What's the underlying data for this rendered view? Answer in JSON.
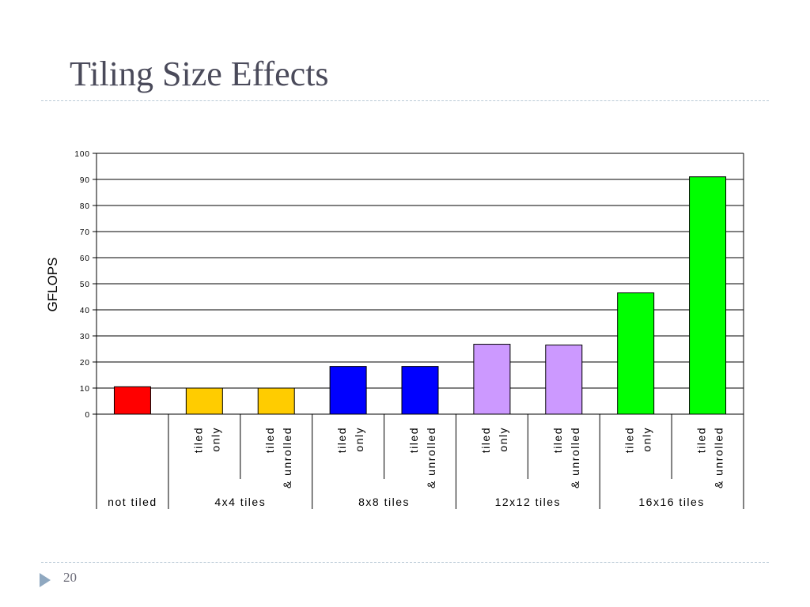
{
  "slide": {
    "title": "Tiling Size Effects",
    "page_number": "20"
  },
  "chart_data": {
    "type": "bar",
    "title": "",
    "xlabel": "",
    "ylabel": "GFLOPS",
    "ylim": [
      0,
      100
    ],
    "yticks": [
      0,
      10,
      20,
      30,
      40,
      50,
      60,
      70,
      80,
      90,
      100
    ],
    "grid": true,
    "bars": [
      {
        "group": "not tiled",
        "label": "",
        "value": 10.5,
        "color": "#ff0000"
      },
      {
        "group": "4x4 tiles",
        "label": "tiled only",
        "value": 10,
        "color": "#ffcc00"
      },
      {
        "group": "4x4 tiles",
        "label": "tiled & unrolled",
        "value": 10,
        "color": "#ffcc00"
      },
      {
        "group": "8x8 tiles",
        "label": "tiled only",
        "value": 18.3,
        "color": "#0000ff"
      },
      {
        "group": "8x8 tiles",
        "label": "tiled & unrolled",
        "value": 18.3,
        "color": "#0000ff"
      },
      {
        "group": "12x12 tiles",
        "label": "tiled only",
        "value": 26.8,
        "color": "#cc99ff"
      },
      {
        "group": "12x12 tiles",
        "label": "tiled & unrolled",
        "value": 26.5,
        "color": "#cc99ff"
      },
      {
        "group": "16x16 tiles",
        "label": "tiled only",
        "value": 46.5,
        "color": "#00ff00"
      },
      {
        "group": "16x16 tiles",
        "label": "tiled & unrolled",
        "value": 91,
        "color": "#00ff00"
      }
    ],
    "groups": [
      "not tiled",
      "4x4 tiles",
      "8x8 tiles",
      "12x12 tiles",
      "16x16 tiles"
    ]
  }
}
